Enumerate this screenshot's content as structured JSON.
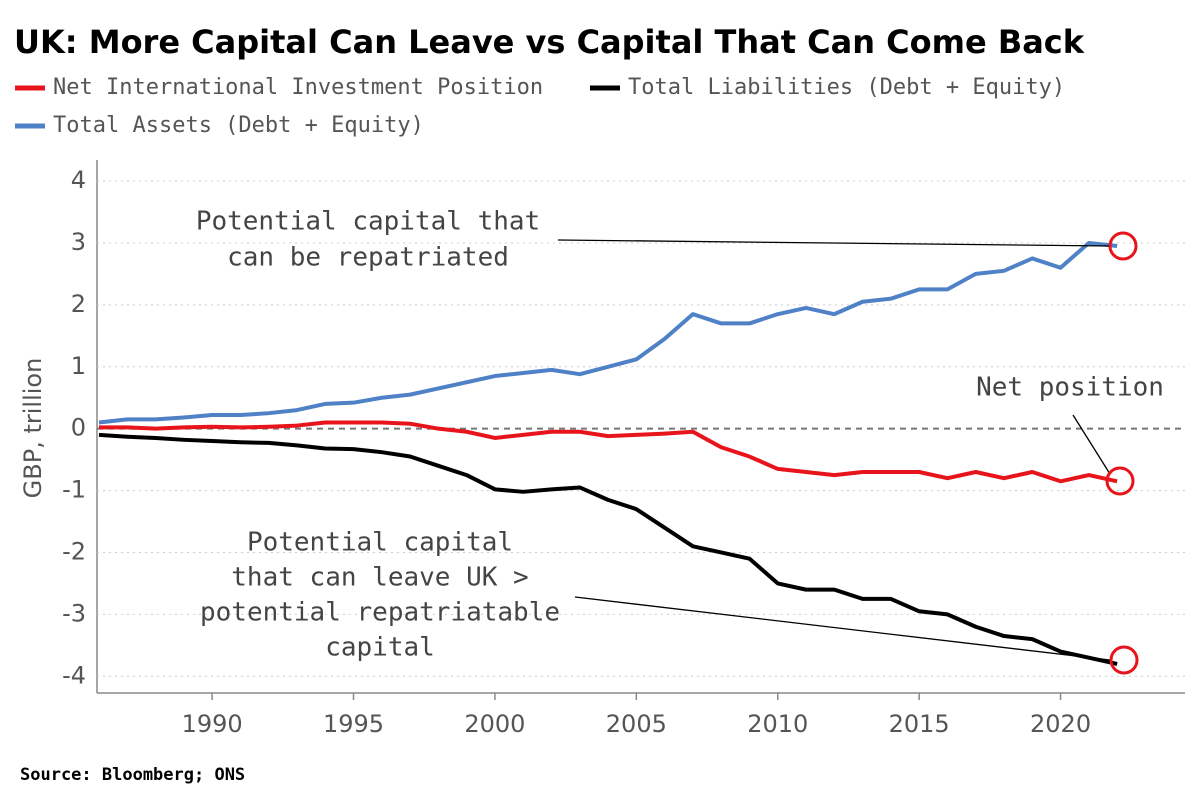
{
  "chart_data": {
    "type": "line",
    "title": "UK: More Capital Can Leave vs Capital That Can Come Back",
    "y_label": "GBP, trillion",
    "source": "Source: Bloomberg; ONS",
    "x": [
      1986,
      1987,
      1988,
      1989,
      1990,
      1991,
      1992,
      1993,
      1994,
      1995,
      1996,
      1997,
      1998,
      1999,
      2000,
      2001,
      2002,
      2003,
      2004,
      2005,
      2006,
      2007,
      2008,
      2009,
      2010,
      2011,
      2012,
      2013,
      2014,
      2015,
      2016,
      2017,
      2018,
      2019,
      2020,
      2021,
      2022
    ],
    "series": [
      {
        "name": "Net International Investment Position",
        "color": "#e8141c",
        "values": [
          0.02,
          0.02,
          0.0,
          0.02,
          0.03,
          0.02,
          0.03,
          0.05,
          0.1,
          0.1,
          0.1,
          0.08,
          0.0,
          -0.05,
          -0.15,
          -0.1,
          -0.05,
          -0.05,
          -0.12,
          -0.1,
          -0.08,
          -0.05,
          -0.3,
          -0.45,
          -0.65,
          -0.7,
          -0.75,
          -0.7,
          -0.7,
          -0.7,
          -0.8,
          -0.7,
          -0.8,
          -0.7,
          -0.85,
          -0.75,
          -0.85
        ]
      },
      {
        "name": "Total Liabilities (Debt + Equity)",
        "color": "#000000",
        "values": [
          -0.1,
          -0.13,
          -0.15,
          -0.18,
          -0.2,
          -0.22,
          -0.23,
          -0.27,
          -0.32,
          -0.33,
          -0.38,
          -0.45,
          -0.6,
          -0.75,
          -0.98,
          -1.02,
          -0.98,
          -0.95,
          -1.15,
          -1.3,
          -1.6,
          -1.9,
          -2.0,
          -2.1,
          -2.5,
          -2.6,
          -2.6,
          -2.75,
          -2.75,
          -2.95,
          -3.0,
          -3.2,
          -3.35,
          -3.4,
          -3.6,
          -3.7,
          -3.8
        ]
      },
      {
        "name": "Total Assets (Debt + Equity)",
        "color": "#4f81c7",
        "values": [
          0.1,
          0.15,
          0.15,
          0.18,
          0.22,
          0.22,
          0.25,
          0.3,
          0.4,
          0.42,
          0.5,
          0.55,
          0.65,
          0.75,
          0.85,
          0.9,
          0.95,
          0.88,
          1.0,
          1.12,
          1.45,
          1.85,
          1.7,
          1.7,
          1.85,
          1.95,
          1.85,
          2.05,
          2.1,
          2.25,
          2.25,
          2.5,
          2.55,
          2.75,
          2.6,
          3.0,
          2.95
        ]
      }
    ],
    "xlim": [
      1985.93,
      2024.4
    ],
    "xticks": [
      1990,
      1995,
      2000,
      2005,
      2010,
      2015,
      2020
    ],
    "ylim": [
      -4.27,
      4.34
    ],
    "yticks": [
      -4,
      -3,
      -2,
      -1,
      0,
      1,
      2,
      3,
      4
    ],
    "grid": true,
    "annotations": [
      {
        "lines": [
          "Potential capital that",
          "can be repatriated"
        ]
      },
      {
        "lines": [
          "Net position"
        ]
      },
      {
        "lines": [
          "Potential capital",
          "that can leave UK >",
          "potential repatriatable",
          "capital"
        ]
      }
    ]
  }
}
